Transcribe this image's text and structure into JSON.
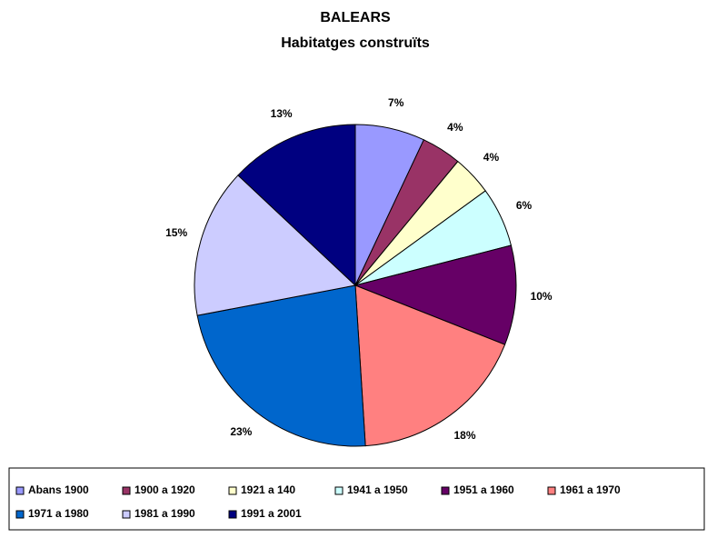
{
  "chart_data": {
    "type": "pie",
    "title": "BALEARS",
    "subtitle": "Habitatges construïts",
    "categories": [
      "Abans 1900",
      "1900 a 1920",
      "1921 a 140",
      "1941 a 1950",
      "1951 a 1960",
      "1961 a 1970",
      "1971 a 1980",
      "1981 a 1990",
      "1991 a 2001"
    ],
    "values": [
      7,
      4,
      4,
      6,
      10,
      18,
      23,
      15,
      13
    ],
    "value_labels": [
      "7%",
      "4%",
      "4%",
      "6%",
      "10%",
      "18%",
      "23%",
      "15%",
      "13%"
    ],
    "colors": [
      "#9999ff",
      "#993366",
      "#ffffcc",
      "#ccffff",
      "#660066",
      "#ff8080",
      "#0066cc",
      "#ccccff",
      "#000080"
    ],
    "legend": "bottom"
  }
}
